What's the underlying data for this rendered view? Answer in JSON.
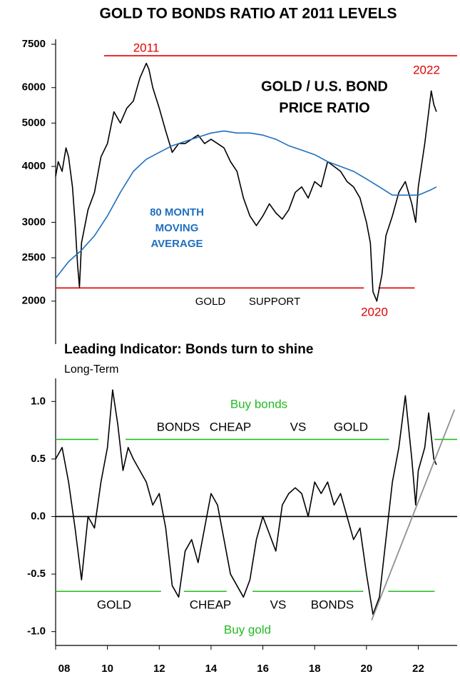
{
  "chart_data": [
    {
      "type": "line",
      "title": "GOLD TO BONDS RATIO AT 2011 LEVELS",
      "log": true,
      "xlim": [
        2008,
        2023.5
      ],
      "ylim": [
        1700,
        7500
      ],
      "yticks": [
        2000,
        2500,
        3000,
        4000,
        5000,
        6000,
        7500
      ],
      "series": [
        {
          "color": "#000000",
          "x": [
            2008,
            2008.1,
            2008.25,
            2008.4,
            2008.5,
            2008.65,
            2008.75,
            2008.85,
            2008.92,
            2009,
            2009.25,
            2009.5,
            2009.75,
            2010,
            2010.25,
            2010.5,
            2010.75,
            2011,
            2011.25,
            2011.5,
            2011.6,
            2011.75,
            2012,
            2012.25,
            2012.5,
            2012.75,
            2013,
            2013.25,
            2013.5,
            2013.75,
            2014,
            2014.25,
            2014.5,
            2014.75,
            2015,
            2015.25,
            2015.5,
            2015.75,
            2016,
            2016.25,
            2016.5,
            2016.75,
            2017,
            2017.25,
            2017.5,
            2017.75,
            2018,
            2018.25,
            2018.5,
            2018.75,
            2019,
            2019.25,
            2019.5,
            2019.75,
            2020,
            2020.15,
            2020.25,
            2020.4,
            2020.6,
            2020.75,
            2021,
            2021.25,
            2021.5,
            2021.75,
            2021.9,
            2022,
            2022.25,
            2022.5,
            2022.6,
            2022.7
          ],
          "values": [
            3800,
            4100,
            3900,
            4400,
            4200,
            3600,
            3000,
            2400,
            2150,
            2700,
            3200,
            3500,
            4200,
            4500,
            5300,
            5000,
            5400,
            5600,
            6300,
            6800,
            6600,
            6000,
            5400,
            4800,
            4300,
            4500,
            4500,
            4600,
            4700,
            4500,
            4600,
            4500,
            4400,
            4100,
            3900,
            3400,
            3100,
            2950,
            3100,
            3300,
            3150,
            3050,
            3200,
            3500,
            3600,
            3400,
            3700,
            3600,
            4100,
            4000,
            3900,
            3700,
            3600,
            3400,
            3000,
            2700,
            2100,
            2000,
            2300,
            2800,
            3100,
            3500,
            3700,
            3300,
            3000,
            3600,
            4500,
            5900,
            5500,
            5300
          ]
        },
        {
          "color": "#1f6fc0",
          "x": [
            2008,
            2008.5,
            2009,
            2009.5,
            2010,
            2010.5,
            2011,
            2011.5,
            2012,
            2012.5,
            2013,
            2013.5,
            2014,
            2014.5,
            2015,
            2015.5,
            2016,
            2016.5,
            2017,
            2017.5,
            2018,
            2018.5,
            2019,
            2019.5,
            2020,
            2020.5,
            2021,
            2021.5,
            2022,
            2022.5,
            2022.7
          ],
          "values": [
            2250,
            2450,
            2600,
            2800,
            3100,
            3500,
            3900,
            4150,
            4300,
            4450,
            4550,
            4650,
            4750,
            4800,
            4750,
            4750,
            4700,
            4600,
            4450,
            4350,
            4250,
            4100,
            4000,
            3900,
            3750,
            3600,
            3450,
            3450,
            3450,
            3550,
            3600
          ]
        }
      ],
      "reference_lines": [
        {
          "value": 7070,
          "color": "#e00000",
          "segments": [
            [
              2009.87,
              2023.5
            ]
          ]
        },
        {
          "value": 2140,
          "color": "#e00000",
          "segments": [
            [
              2008,
              2019.9
            ],
            [
              2020.46,
              2021.86
            ]
          ]
        }
      ],
      "annotations": [
        {
          "text": "2011",
          "color": "#e00000"
        },
        {
          "text": "2022",
          "color": "#e00000"
        },
        {
          "text": "GOLD / U.S. BOND",
          "color": "#000000",
          "bold": true
        },
        {
          "text": "PRICE RATIO",
          "color": "#000000",
          "bold": true
        },
        {
          "text": "80 MONTH",
          "color": "#1f6fc0",
          "bold": true
        },
        {
          "text": "MOVING",
          "color": "#1f6fc0",
          "bold": true
        },
        {
          "text": "AVERAGE",
          "color": "#1f6fc0",
          "bold": true
        },
        {
          "text": "GOLD",
          "color": "#000000"
        },
        {
          "text": "SUPPORT",
          "color": "#000000"
        },
        {
          "text": "2020",
          "color": "#e00000"
        }
      ]
    },
    {
      "type": "line",
      "title": "Leading Indicator: Bonds turn to shine",
      "subtitle": "Long-Term",
      "xlim": [
        2008,
        2023.5
      ],
      "ylim": [
        -1.12,
        1.25
      ],
      "xticks": [
        {
          "value": 2008,
          "label": "08"
        },
        {
          "value": 2010,
          "label": "10"
        },
        {
          "value": 2012,
          "label": "12"
        },
        {
          "value": 2014,
          "label": "14"
        },
        {
          "value": 2016,
          "label": "16"
        },
        {
          "value": 2018,
          "label": "18"
        },
        {
          "value": 2020,
          "label": "20"
        },
        {
          "value": 2022,
          "label": "22"
        }
      ],
      "yticks": [
        {
          "value": 1,
          "label": "1.0"
        },
        0.5,
        {
          "value": 0,
          "label": "0.0"
        },
        -0.5,
        {
          "value": -1,
          "label": "-1.0"
        }
      ],
      "series": [
        {
          "color": "#000000",
          "x": [
            2008,
            2008.25,
            2008.5,
            2008.75,
            2009,
            2009.25,
            2009.5,
            2009.75,
            2010,
            2010.2,
            2010.4,
            2010.6,
            2010.8,
            2011,
            2011.25,
            2011.5,
            2011.75,
            2012,
            2012.25,
            2012.5,
            2012.75,
            2013,
            2013.25,
            2013.5,
            2013.75,
            2014,
            2014.25,
            2014.5,
            2014.75,
            2015,
            2015.25,
            2015.5,
            2015.75,
            2016,
            2016.25,
            2016.5,
            2016.75,
            2017,
            2017.25,
            2017.5,
            2017.75,
            2018,
            2018.25,
            2018.5,
            2018.75,
            2019,
            2019.25,
            2019.5,
            2019.75,
            2020,
            2020.25,
            2020.5,
            2020.75,
            2021,
            2021.25,
            2021.5,
            2021.75,
            2021.9,
            2022,
            2022.25,
            2022.4,
            2022.6,
            2022.7
          ],
          "values": [
            0.5,
            0.6,
            0.3,
            -0.1,
            -0.55,
            0,
            -0.1,
            0.3,
            0.6,
            1.1,
            0.8,
            0.4,
            0.6,
            0.5,
            0.4,
            0.3,
            0.1,
            0.2,
            -0.1,
            -0.6,
            -0.7,
            -0.3,
            -0.2,
            -0.4,
            -0.1,
            0.2,
            0.1,
            -0.2,
            -0.5,
            -0.6,
            -0.7,
            -0.55,
            -0.2,
            0,
            -0.15,
            -0.3,
            0.1,
            0.2,
            0.25,
            0.2,
            0,
            0.3,
            0.2,
            0.3,
            0.1,
            0.2,
            0,
            -0.2,
            -0.1,
            -0.5,
            -0.85,
            -0.7,
            -0.2,
            0.3,
            0.6,
            1.05,
            0.5,
            0.1,
            0.4,
            0.6,
            0.9,
            0.5,
            0.45
          ]
        }
      ],
      "reference_lines": [
        {
          "value": 0,
          "color": "#000000",
          "segments": [
            [
              2008,
              2023.5
            ]
          ]
        },
        {
          "value": 0.67,
          "color": "#22bb22",
          "segments": [
            [
              2008,
              2009.65
            ],
            [
              2010.7,
              2020.87
            ],
            [
              2022.63,
              2023.5
            ]
          ]
        },
        {
          "value": -0.65,
          "color": "#22bb22",
          "segments": [
            [
              2008,
              2012.07
            ],
            [
              2012.95,
              2014.6
            ],
            [
              2015.6,
              2019.88
            ],
            [
              2020.84,
              2022.63
            ]
          ]
        }
      ],
      "trend": {
        "color": "#909090",
        "x": [
          2020.2,
          2023.4
        ],
        "values": [
          -0.9,
          0.93
        ]
      },
      "annotations": [
        {
          "text": "Buy bonds",
          "color": "#22bb22"
        },
        {
          "text": "BONDS",
          "color": "#000000"
        },
        {
          "text": "CHEAP",
          "color": "#000000"
        },
        {
          "text": "VS",
          "color": "#000000"
        },
        {
          "text": "GOLD",
          "color": "#000000"
        },
        {
          "text": "GOLD",
          "color": "#000000"
        },
        {
          "text": "CHEAP",
          "color": "#000000"
        },
        {
          "text": "VS",
          "color": "#000000"
        },
        {
          "text": "BONDS",
          "color": "#000000"
        },
        {
          "text": "Buy gold",
          "color": "#22bb22"
        }
      ]
    }
  ]
}
